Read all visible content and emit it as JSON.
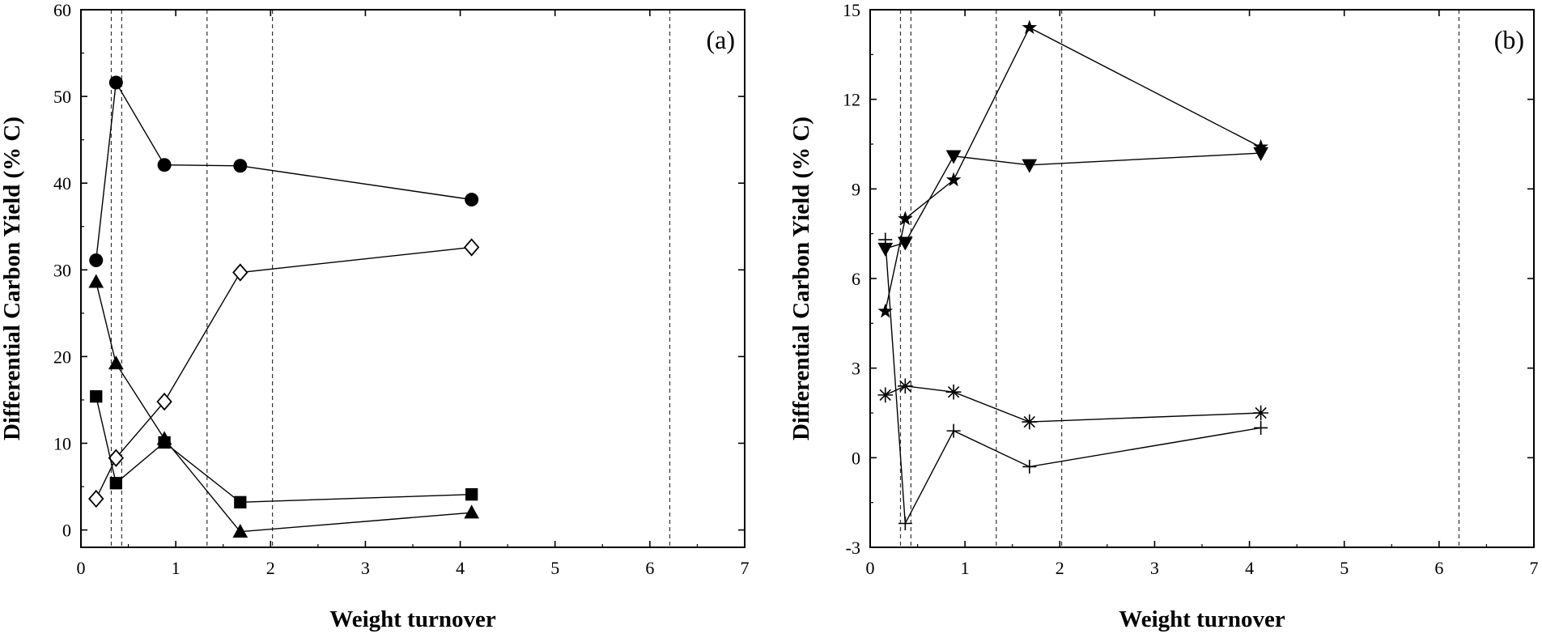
{
  "chart_data": [
    {
      "type": "scatter",
      "panel_label": "(a)",
      "xlabel": "Weight turnover",
      "ylabel": "Differential Carbon Yield (% C)",
      "xlim": [
        0,
        7
      ],
      "ylim": [
        -2,
        60
      ],
      "xticks": [
        0,
        1,
        2,
        3,
        4,
        5,
        6,
        7
      ],
      "yticks": [
        0,
        10,
        20,
        30,
        40,
        50,
        60
      ],
      "xtick_labels": [
        "0",
        "1",
        "2",
        "3",
        "4",
        "5",
        "6",
        "7"
      ],
      "ytick_labels": [
        "0",
        "10",
        "20",
        "30",
        "40",
        "50",
        "60"
      ],
      "vlines": [
        0.32,
        0.43,
        1.33,
        2.02,
        6.21
      ],
      "grid": false,
      "series": [
        {
          "marker": "circle-filled",
          "color": "#000000",
          "x": [
            0.16,
            0.37,
            0.88,
            1.68,
            4.12
          ],
          "y": [
            31.1,
            51.6,
            42.1,
            42.0,
            38.1
          ]
        },
        {
          "marker": "diamond-open",
          "color": "#000000",
          "x": [
            0.16,
            0.37,
            0.88,
            1.68,
            4.12
          ],
          "y": [
            3.6,
            8.3,
            14.8,
            29.7,
            32.6
          ]
        },
        {
          "marker": "triangle-up-filled",
          "color": "#000000",
          "x": [
            0.16,
            0.37,
            0.88,
            1.68,
            4.12
          ],
          "y": [
            28.6,
            19.2,
            10.5,
            -0.2,
            2.0
          ]
        },
        {
          "marker": "square-filled",
          "color": "#000000",
          "x": [
            0.16,
            0.37,
            0.88,
            1.68,
            4.12
          ],
          "y": [
            15.4,
            5.4,
            10.1,
            3.2,
            4.1
          ]
        }
      ]
    },
    {
      "type": "scatter",
      "panel_label": "(b)",
      "xlabel": "Weight turnover",
      "ylabel": "Differential Carbon Yield (% C)",
      "xlim": [
        0,
        7
      ],
      "ylim": [
        -3,
        15
      ],
      "xticks": [
        0,
        1,
        2,
        3,
        4,
        5,
        6,
        7
      ],
      "yticks": [
        -3,
        0,
        3,
        6,
        9,
        12,
        15
      ],
      "xtick_labels": [
        "0",
        "1",
        "2",
        "3",
        "4",
        "5",
        "6",
        "7"
      ],
      "ytick_labels": [
        "-3",
        "0",
        "3",
        "6",
        "9",
        "12",
        "15"
      ],
      "vlines": [
        0.32,
        0.43,
        1.33,
        2.02,
        6.21
      ],
      "grid": false,
      "series": [
        {
          "marker": "star-filled",
          "color": "#000000",
          "x": [
            0.16,
            0.37,
            0.88,
            1.68,
            4.12
          ],
          "y": [
            4.9,
            8.0,
            9.3,
            14.4,
            10.4
          ]
        },
        {
          "marker": "triangle-down-filled",
          "color": "#000000",
          "x": [
            0.16,
            0.37,
            0.88,
            1.68,
            4.12
          ],
          "y": [
            7.0,
            7.2,
            10.1,
            9.8,
            10.2
          ]
        },
        {
          "marker": "asterisk",
          "color": "#000000",
          "x": [
            0.16,
            0.37,
            0.88,
            1.68,
            4.12
          ],
          "y": [
            2.1,
            2.4,
            2.2,
            1.2,
            1.5
          ]
        },
        {
          "marker": "plus",
          "color": "#000000",
          "x": [
            0.16,
            0.37,
            0.88,
            1.68,
            4.12
          ],
          "y": [
            7.3,
            -2.2,
            0.9,
            -0.3,
            1.0
          ]
        }
      ]
    }
  ]
}
